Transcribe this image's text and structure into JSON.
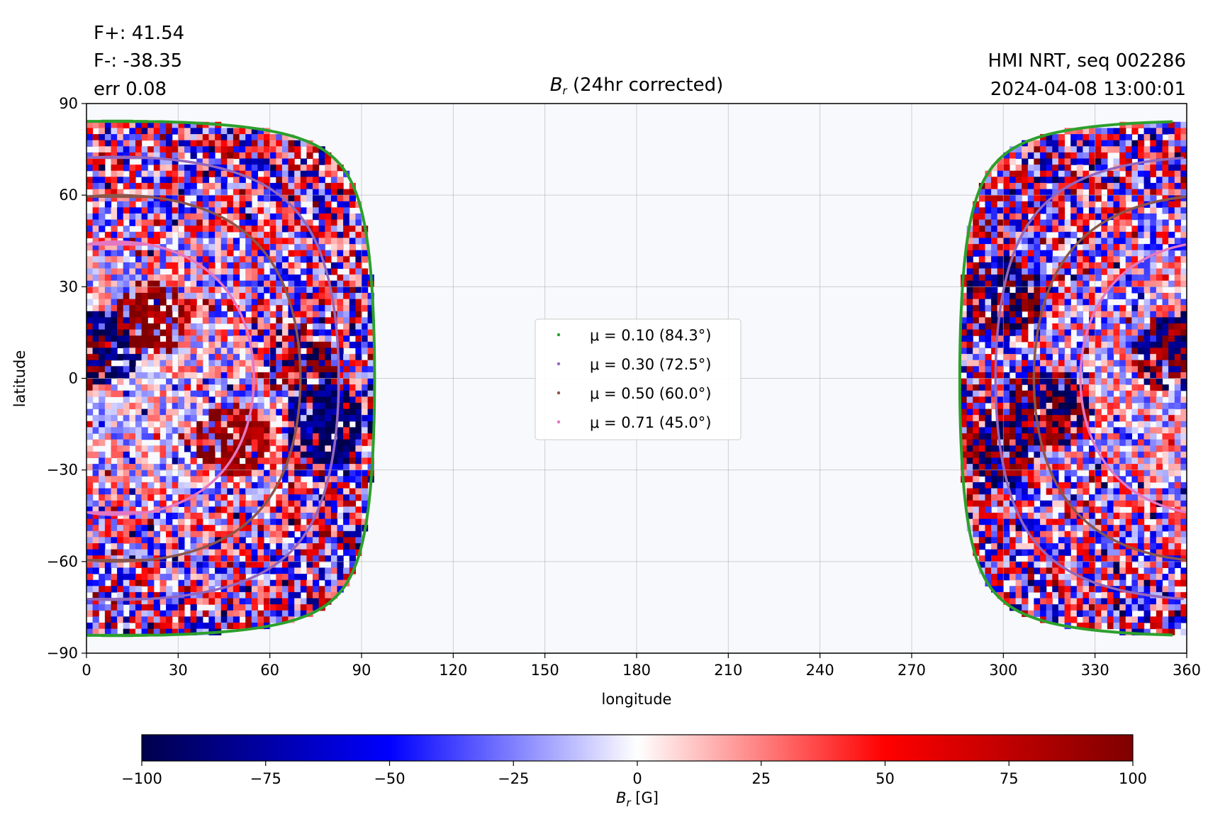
{
  "header": {
    "flux_pos": "F+: 41.54",
    "flux_neg": "F-: -38.35",
    "err": "err 0.08",
    "source": "HMI NRT, seq 002286",
    "timestamp": "2024-04-08 13:00:01",
    "title_symbol": "B",
    "title_sub": "r",
    "title_text": "(24hr corrected)"
  },
  "chart_data": {
    "type": "heatmap",
    "title": "B_r (24hr corrected)",
    "xlabel": "longitude",
    "ylabel": "latitude",
    "xlim": [
      0,
      360
    ],
    "ylim": [
      -90,
      90
    ],
    "xticks": [
      0,
      30,
      60,
      90,
      120,
      150,
      180,
      210,
      240,
      270,
      300,
      330,
      360
    ],
    "yticks": [
      -90,
      -60,
      -30,
      0,
      30,
      60,
      90
    ],
    "xtick_labels": [
      "0",
      "30",
      "60",
      "90",
      "120",
      "150",
      "180",
      "210",
      "240",
      "270",
      "300",
      "330",
      "360"
    ],
    "ytick_labels": [
      "−90",
      "−60",
      "−30",
      "0",
      "30",
      "60",
      "90"
    ],
    "grid": true,
    "disk_center_longitude": 10,
    "colormap": "seismic",
    "colorbar": {
      "label_symbol": "B",
      "label_sub": "r",
      "label_unit": "[G]",
      "range": [
        -100,
        100
      ],
      "ticks": [
        -100,
        -75,
        -50,
        -25,
        0,
        25,
        50,
        75,
        100
      ],
      "tick_labels": [
        "−100",
        "−75",
        "−50",
        "−25",
        "0",
        "25",
        "50",
        "75",
        "100"
      ]
    },
    "legend": {
      "placement": "center",
      "entries": [
        {
          "label": "μ = 0.10 (84.3°)",
          "mu": 0.1,
          "angle_deg": 84.3,
          "color": "#2ca02c"
        },
        {
          "label": "μ = 0.30 (72.5°)",
          "mu": 0.3,
          "angle_deg": 72.5,
          "color": "#9467bd"
        },
        {
          "label": "μ = 0.50 (60.0°)",
          "mu": 0.5,
          "angle_deg": 60.0,
          "color": "#8c564b"
        },
        {
          "label": "μ = 0.71 (45.0°)",
          "mu": 0.71,
          "angle_deg": 45.0,
          "color": "#e377c2"
        }
      ]
    },
    "active_regions": [
      {
        "lon": 5,
        "lat": 10,
        "polarity": "negative"
      },
      {
        "lon": 22,
        "lat": 20,
        "polarity": "positive"
      },
      {
        "lon": 48,
        "lat": -20,
        "polarity": "positive"
      },
      {
        "lon": 70,
        "lat": 5,
        "polarity": "mixed"
      },
      {
        "lon": 78,
        "lat": -15,
        "polarity": "negative"
      },
      {
        "lon": 300,
        "lat": 27,
        "polarity": "mixed"
      },
      {
        "lon": 315,
        "lat": -10,
        "polarity": "mixed"
      },
      {
        "lon": 300,
        "lat": -22,
        "polarity": "mixed"
      },
      {
        "lon": 355,
        "lat": 8,
        "polarity": "mixed"
      }
    ]
  }
}
